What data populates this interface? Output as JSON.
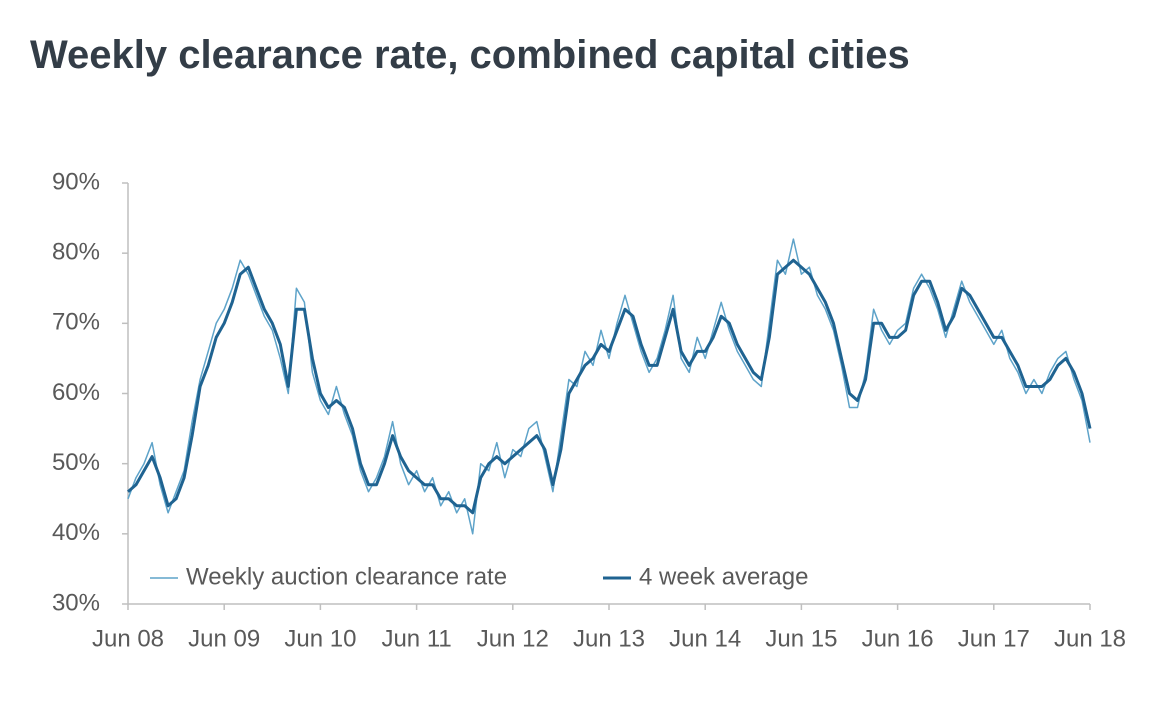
{
  "chart_data": {
    "type": "line",
    "title": "Weekly clearance rate, combined capital cities",
    "x": [
      "2008-06",
      "2008-07",
      "2008-08",
      "2008-09",
      "2008-10",
      "2008-11",
      "2008-12",
      "2009-01",
      "2009-02",
      "2009-03",
      "2009-04",
      "2009-05",
      "2009-06",
      "2009-07",
      "2009-08",
      "2009-09",
      "2009-10",
      "2009-11",
      "2009-12",
      "2010-01",
      "2010-02",
      "2010-03",
      "2010-04",
      "2010-05",
      "2010-06",
      "2010-07",
      "2010-08",
      "2010-09",
      "2010-10",
      "2010-11",
      "2010-12",
      "2011-01",
      "2011-02",
      "2011-03",
      "2011-04",
      "2011-05",
      "2011-06",
      "2011-07",
      "2011-08",
      "2011-09",
      "2011-10",
      "2011-11",
      "2011-12",
      "2012-01",
      "2012-02",
      "2012-03",
      "2012-04",
      "2012-05",
      "2012-06",
      "2012-07",
      "2012-08",
      "2012-09",
      "2012-10",
      "2012-11",
      "2012-12",
      "2013-01",
      "2013-02",
      "2013-03",
      "2013-04",
      "2013-05",
      "2013-06",
      "2013-07",
      "2013-08",
      "2013-09",
      "2013-10",
      "2013-11",
      "2013-12",
      "2014-01",
      "2014-02",
      "2014-03",
      "2014-04",
      "2014-05",
      "2014-06",
      "2014-07",
      "2014-08",
      "2014-09",
      "2014-10",
      "2014-11",
      "2014-12",
      "2015-01",
      "2015-02",
      "2015-03",
      "2015-04",
      "2015-05",
      "2015-06",
      "2015-07",
      "2015-08",
      "2015-09",
      "2015-10",
      "2015-11",
      "2015-12",
      "2016-01",
      "2016-02",
      "2016-03",
      "2016-04",
      "2016-05",
      "2016-06",
      "2016-07",
      "2016-08",
      "2016-09",
      "2016-10",
      "2016-11",
      "2016-12",
      "2017-01",
      "2017-02",
      "2017-03",
      "2017-04",
      "2017-05",
      "2017-06",
      "2017-07",
      "2017-08",
      "2017-09",
      "2017-10",
      "2017-11",
      "2017-12",
      "2018-01",
      "2018-02",
      "2018-03",
      "2018-04",
      "2018-05",
      "2018-06"
    ],
    "series": [
      {
        "name": "Weekly auction clearance rate",
        "color": "#5ea3c9",
        "width": 1.5,
        "values": [
          45,
          48,
          50,
          53,
          47,
          43,
          46,
          49,
          56,
          62,
          66,
          70,
          72,
          75,
          79,
          77,
          74,
          71,
          69,
          65,
          60,
          75,
          73,
          63,
          59,
          57,
          61,
          57,
          54,
          49,
          46,
          48,
          51,
          56,
          50,
          47,
          49,
          46,
          48,
          44,
          46,
          43,
          45,
          40,
          50,
          49,
          53,
          48,
          52,
          51,
          55,
          56,
          51,
          46,
          54,
          62,
          61,
          66,
          64,
          69,
          65,
          70,
          74,
          70,
          66,
          63,
          65,
          69,
          74,
          65,
          63,
          68,
          65,
          69,
          73,
          69,
          66,
          64,
          62,
          61,
          70,
          79,
          77,
          82,
          77,
          78,
          74,
          72,
          69,
          64,
          58,
          58,
          63,
          72,
          69,
          67,
          69,
          70,
          75,
          77,
          75,
          72,
          68,
          72,
          76,
          73,
          71,
          69,
          67,
          69,
          65,
          63,
          60,
          62,
          60,
          63,
          65,
          66,
          62,
          59,
          53
        ]
      },
      {
        "name": "4 week average",
        "color": "#1f6391",
        "width": 3,
        "values": [
          46,
          47,
          49,
          51,
          48,
          44,
          45,
          48,
          54,
          61,
          64,
          68,
          70,
          73,
          77,
          78,
          75,
          72,
          70,
          67,
          61,
          72,
          72,
          65,
          60,
          58,
          59,
          58,
          55,
          50,
          47,
          47,
          50,
          54,
          51,
          49,
          48,
          47,
          47,
          45,
          45,
          44,
          44,
          43,
          48,
          50,
          51,
          50,
          51,
          52,
          53,
          54,
          52,
          47,
          52,
          60,
          62,
          64,
          65,
          67,
          66,
          69,
          72,
          71,
          67,
          64,
          64,
          68,
          72,
          66,
          64,
          66,
          66,
          68,
          71,
          70,
          67,
          65,
          63,
          62,
          68,
          77,
          78,
          79,
          78,
          77,
          75,
          73,
          70,
          65,
          60,
          59,
          62,
          70,
          70,
          68,
          68,
          69,
          74,
          76,
          76,
          73,
          69,
          71,
          75,
          74,
          72,
          70,
          68,
          68,
          66,
          64,
          61,
          61,
          61,
          62,
          64,
          65,
          63,
          60,
          55
        ]
      }
    ],
    "xlim": [
      "2008-06",
      "2018-06"
    ],
    "xticks": [
      {
        "value": "2008-06",
        "label": "Jun 08"
      },
      {
        "value": "2009-06",
        "label": "Jun 09"
      },
      {
        "value": "2010-06",
        "label": "Jun 10"
      },
      {
        "value": "2011-06",
        "label": "Jun 11"
      },
      {
        "value": "2012-06",
        "label": "Jun 12"
      },
      {
        "value": "2013-06",
        "label": "Jun 13"
      },
      {
        "value": "2014-06",
        "label": "Jun 14"
      },
      {
        "value": "2015-06",
        "label": "Jun 15"
      },
      {
        "value": "2016-06",
        "label": "Jun 16"
      },
      {
        "value": "2017-06",
        "label": "Jun 17"
      },
      {
        "value": "2018-06",
        "label": "Jun 18"
      }
    ],
    "ylim": [
      30,
      90
    ],
    "yticks": [
      {
        "value": 30,
        "label": "30%"
      },
      {
        "value": 40,
        "label": "40%"
      },
      {
        "value": 50,
        "label": "50%"
      },
      {
        "value": 60,
        "label": "60%"
      },
      {
        "value": 70,
        "label": "70%"
      },
      {
        "value": 80,
        "label": "80%"
      },
      {
        "value": 90,
        "label": "90%"
      }
    ],
    "grid": false,
    "legend": "bottom-left"
  }
}
